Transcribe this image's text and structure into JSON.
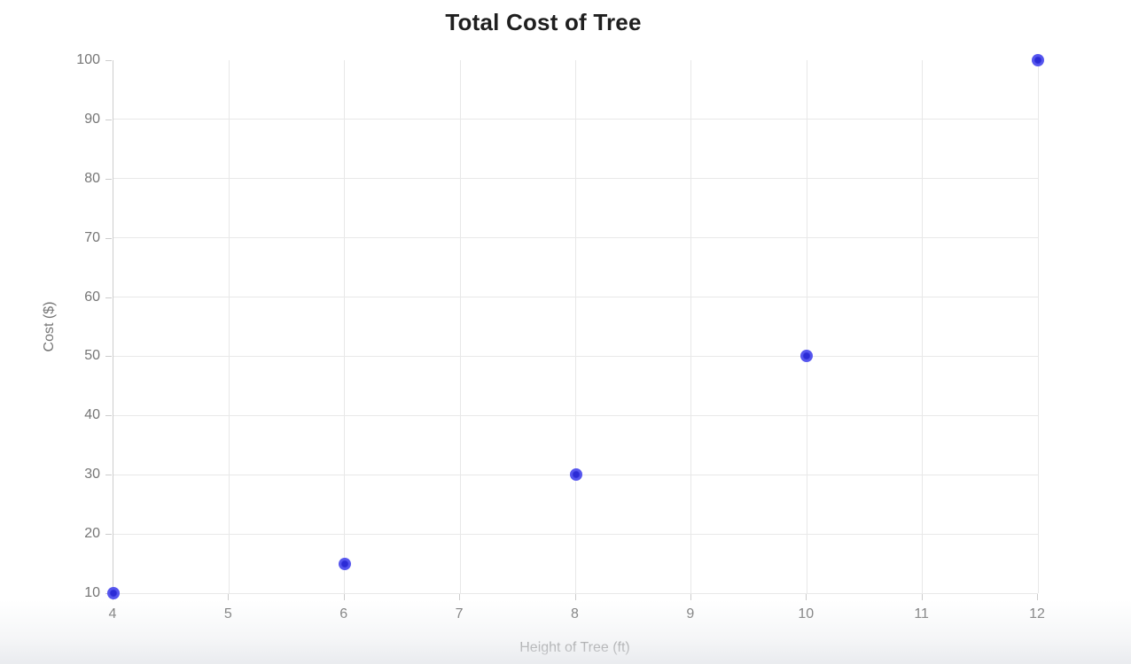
{
  "chart_data": {
    "type": "scatter",
    "title": "Total Cost of Tree",
    "xlabel": "Height of Tree (ft)",
    "ylabel": "Cost ($)",
    "points": [
      {
        "x": 4,
        "y": 10
      },
      {
        "x": 6,
        "y": 15
      },
      {
        "x": 8,
        "y": 30
      },
      {
        "x": 10,
        "y": 50
      },
      {
        "x": 12,
        "y": 100
      }
    ],
    "xlim": [
      4,
      12
    ],
    "ylim": [
      10,
      100
    ],
    "xticks": [
      4,
      5,
      6,
      7,
      8,
      9,
      10,
      11,
      12
    ],
    "yticks": [
      10,
      20,
      30,
      40,
      50,
      60,
      70,
      80,
      90,
      100
    ],
    "grid": true,
    "legend": "none",
    "colors": {
      "point": "#5656ee",
      "point_core": "#2b2bd6",
      "grid": "#e8e8e8",
      "axis": "#cccccc",
      "tick_label": "#757575",
      "title": "#1f1f1f"
    }
  }
}
